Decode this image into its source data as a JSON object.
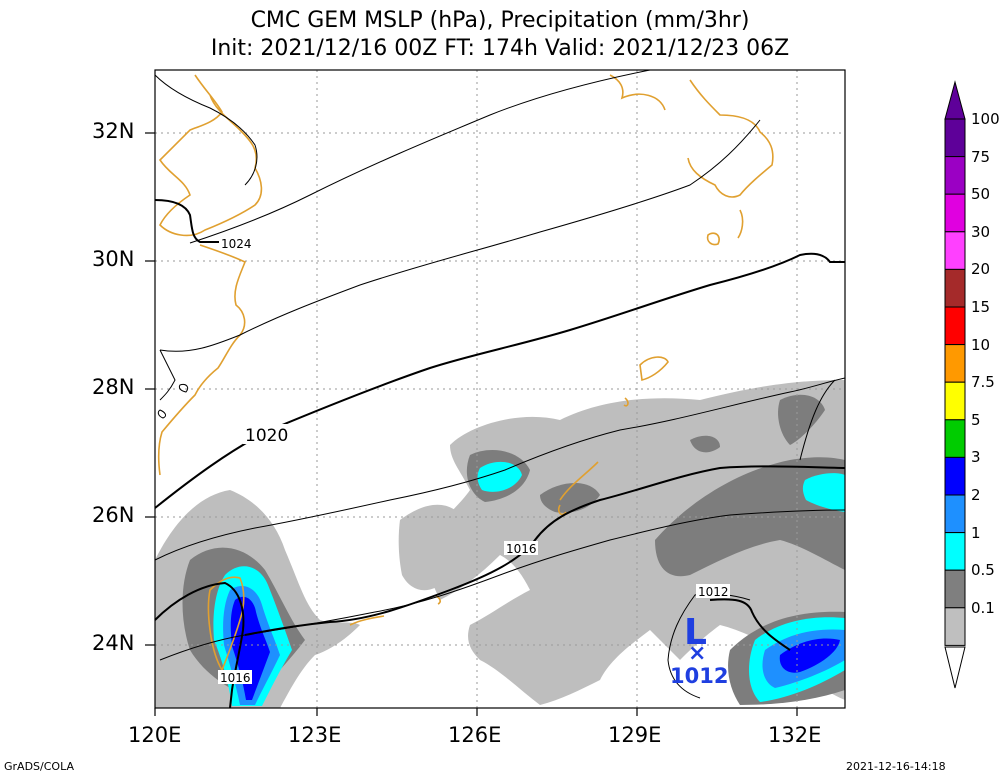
{
  "title_line1": "CMC GEM MSLP (hPa), Precipitation (mm/3hr)",
  "title_line2": "Init: 2021/12/16 00Z  FT: 174h  Valid: 2021/12/23 06Z",
  "lat_labels": [
    "32N",
    "30N",
    "28N",
    "26N",
    "24N"
  ],
  "lon_labels": [
    "120E",
    "123E",
    "126E",
    "129E",
    "132E"
  ],
  "contour_labels": [
    "1024",
    "1020",
    "1016",
    "1012",
    "1016"
  ],
  "low": {
    "letter": "L",
    "marker": "×",
    "value": "1012",
    "color": "#1f3fe0"
  },
  "legend": {
    "labels": [
      "100",
      "75",
      "50",
      "30",
      "20",
      "15",
      "10",
      "7.5",
      "5",
      "3",
      "2",
      "1",
      "0.5",
      "0.1"
    ],
    "colors": [
      "#5e0099",
      "#9b00c4",
      "#e000e0",
      "#ff40ff",
      "#a52a2a",
      "#ff0000",
      "#ff9900",
      "#ffff00",
      "#00cc00",
      "#0000ff",
      "#1e90ff",
      "#00ffff",
      "#7f7f7f",
      "#bfbfbf"
    ]
  },
  "footer_left": "GrADS/COLA",
  "footer_right": "2021-12-16-14:18",
  "colors": {
    "coast": "#e0a030",
    "light_precip": "#bebebe",
    "mid_precip": "#7d7d7d",
    "cyan": "#00ffff",
    "blue": "#0000ff",
    "azure": "#1e90ff"
  }
}
